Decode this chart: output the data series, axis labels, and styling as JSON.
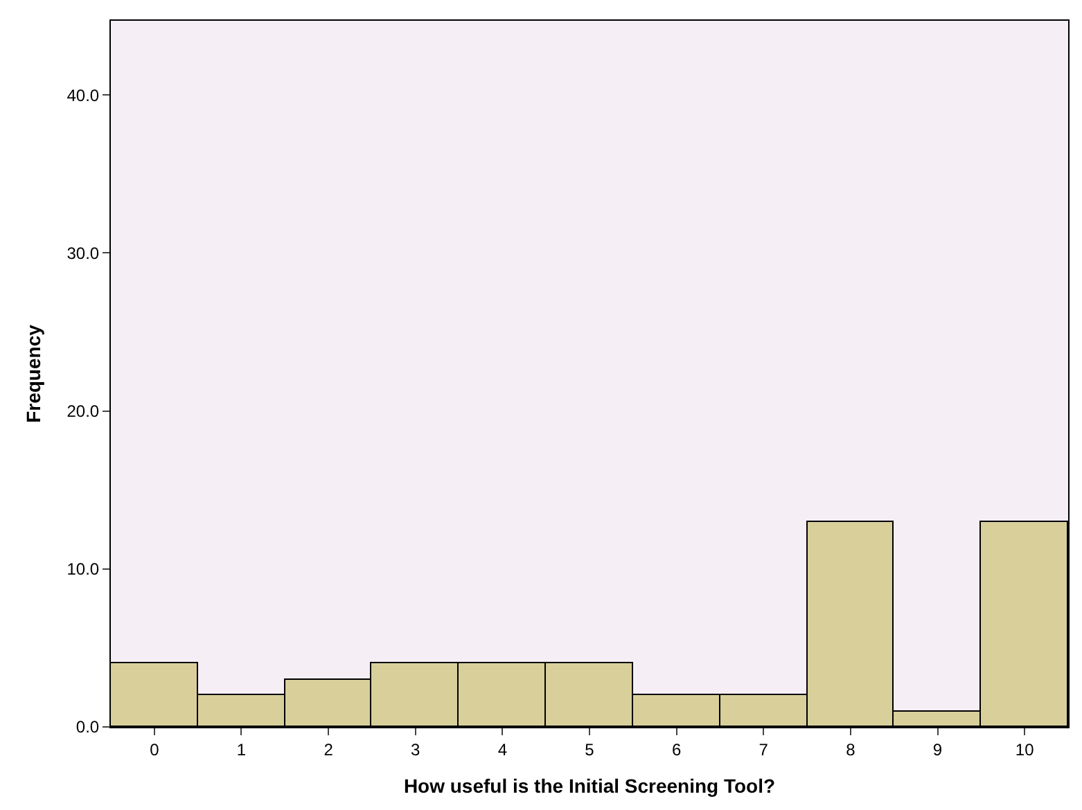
{
  "chart_data": {
    "type": "bar",
    "xlabel": "How useful is the Initial Screening Tool?",
    "ylabel": "Frequency",
    "categories": [
      "0",
      "1",
      "2",
      "3",
      "4",
      "5",
      "6",
      "7",
      "8",
      "9",
      "10"
    ],
    "values": [
      4,
      2,
      3,
      4,
      4,
      4,
      2,
      2,
      13,
      1,
      13
    ],
    "color": "#d8cf9b",
    "ylim": [
      0,
      44.7
    ],
    "yticks": [
      {
        "value": 0,
        "label": "0.0"
      },
      {
        "value": 10,
        "label": "10.0"
      },
      {
        "value": 20,
        "label": "20.0"
      },
      {
        "value": 30,
        "label": "30.0"
      },
      {
        "value": 40,
        "label": "40.0"
      }
    ],
    "grid": false,
    "legend": false
  }
}
